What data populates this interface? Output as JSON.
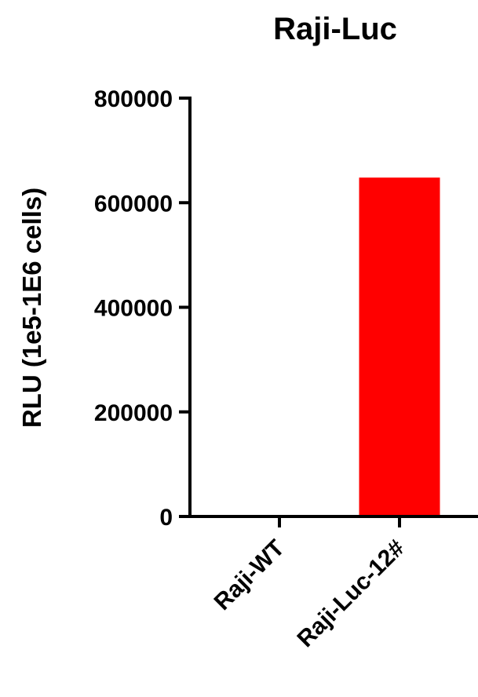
{
  "chart_data": {
    "type": "bar",
    "title": "Raji-Luc",
    "ylabel": "RLU (1e5-1E6 cells)",
    "xlabel": "",
    "categories": [
      "Raji-WT",
      "Raji-Luc-12#"
    ],
    "values": [
      0,
      648000
    ],
    "ylim": [
      0,
      800000
    ],
    "yticks": [
      0,
      200000,
      400000,
      600000,
      800000
    ],
    "ytick_labels": [
      "0",
      "200000",
      "400000",
      "600000",
      "800000"
    ],
    "bar_color": "#ff0000",
    "grid": false,
    "legend": "none"
  }
}
